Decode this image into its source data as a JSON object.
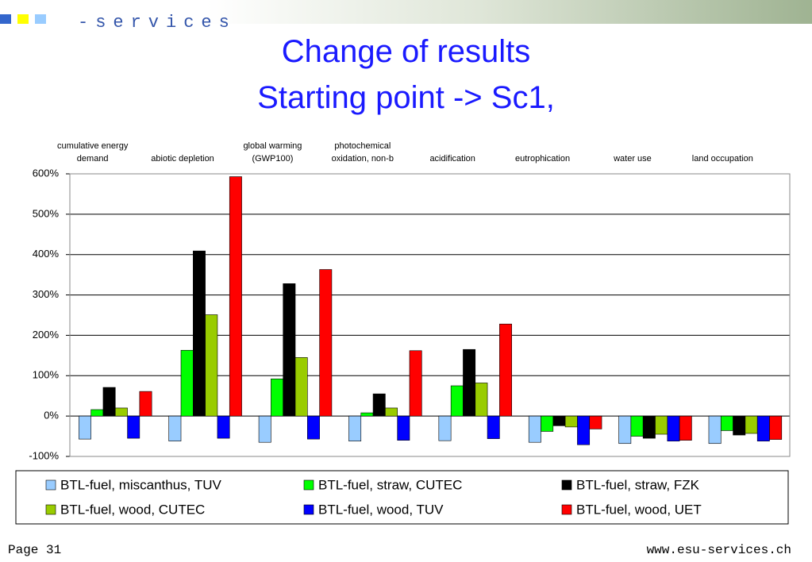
{
  "logo": "-services",
  "footer": {
    "page": "Page 31",
    "url": "www.esu-services.ch"
  },
  "chart_data": {
    "type": "bar",
    "title": "Change of results",
    "subtitle": "Starting point -> Sc1,",
    "categories": [
      "cumulative energy\ndemand",
      "abiotic depletion",
      "global warming\n(GWP100)",
      "photochemical\noxidation, non-b",
      "acidification",
      "eutrophication",
      "water use",
      "land occupation"
    ],
    "ylim": [
      -100,
      600
    ],
    "yticks": [
      {
        "value": -100,
        "label": "-100%"
      },
      {
        "value": 0,
        "label": "0%"
      },
      {
        "value": 100,
        "label": "100%"
      },
      {
        "value": 200,
        "label": "200%"
      },
      {
        "value": 300,
        "label": "300%"
      },
      {
        "value": 400,
        "label": "400%"
      },
      {
        "value": 500,
        "label": "500%"
      },
      {
        "value": 600,
        "label": "600%"
      }
    ],
    "grid": true,
    "legend": "bottom",
    "series": [
      {
        "name": "BTL-fuel, miscanthus, TUV",
        "color": "#99ccff",
        "values": [
          -57,
          -62,
          -65,
          -62,
          -61,
          -65,
          -68,
          -68
        ]
      },
      {
        "name": "BTL-fuel, straw, CUTEC",
        "color": "#00ff00",
        "values": [
          16,
          163,
          92,
          8,
          75,
          -38,
          -50,
          -36
        ]
      },
      {
        "name": "BTL-fuel, straw, FZK",
        "color": "#000000",
        "values": [
          71,
          409,
          328,
          55,
          165,
          -24,
          -55,
          -47
        ]
      },
      {
        "name": "BTL-fuel, wood, CUTEC",
        "color": "#99cc00",
        "values": [
          20,
          251,
          145,
          20,
          82,
          -27,
          -45,
          -43
        ]
      },
      {
        "name": "BTL-fuel, wood, TUV",
        "color": "#0000ff",
        "values": [
          -55,
          -55,
          -57,
          -60,
          -56,
          -71,
          -62,
          -62
        ]
      },
      {
        "name": "BTL-fuel, wood, UET",
        "color": "#ff0000",
        "values": [
          61,
          593,
          363,
          162,
          228,
          -32,
          -60,
          -58
        ]
      }
    ]
  }
}
